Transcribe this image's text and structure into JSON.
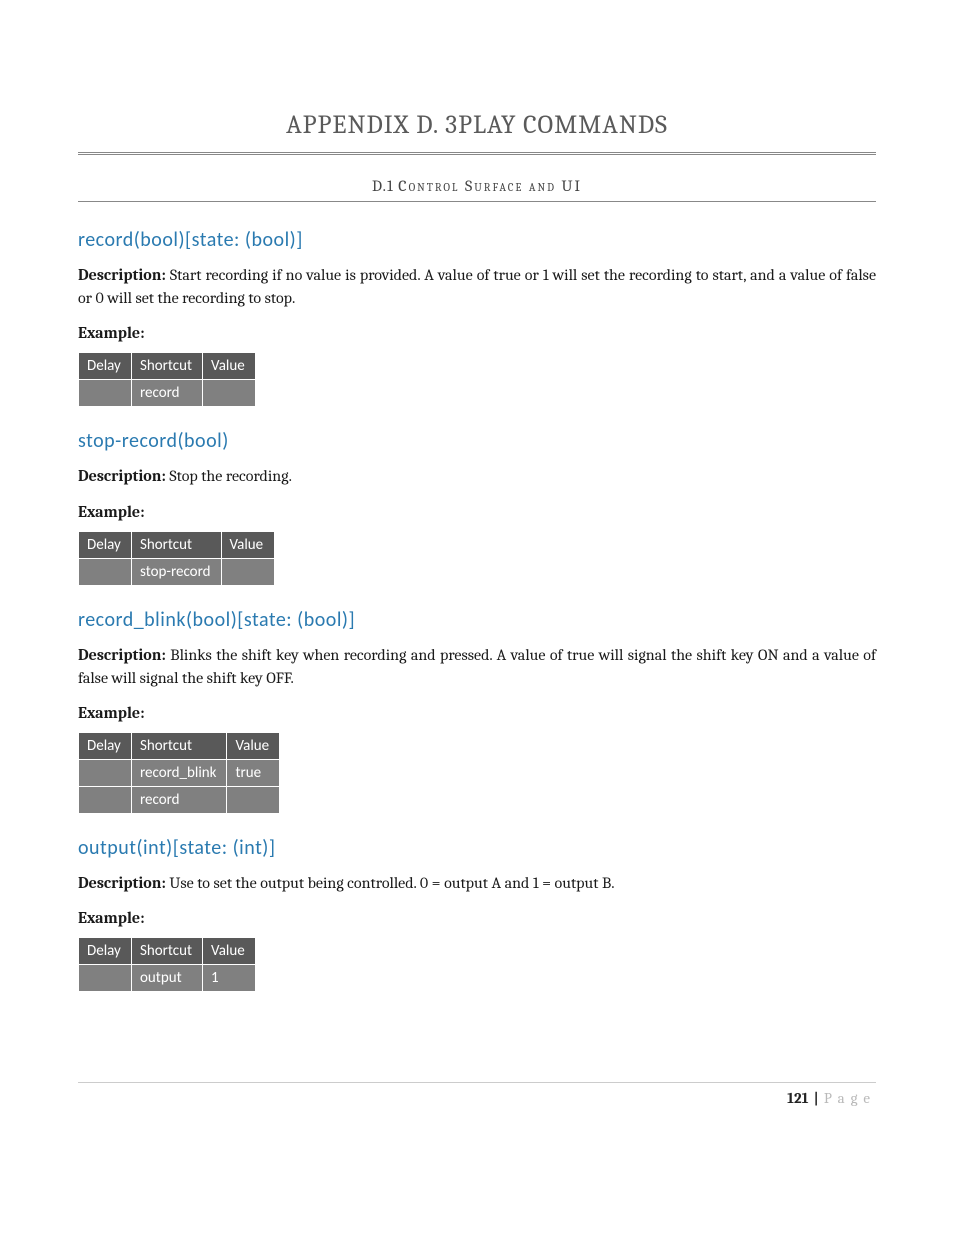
{
  "title": "APPENDIX D.    3PLAY COMMANDS",
  "subtitle_prefix": "D.1 ",
  "subtitle_text": "Control Surface and UI",
  "labels": {
    "description": "Description:",
    "example": "Example:"
  },
  "table_headers": {
    "delay": "Delay",
    "shortcut": "Shortcut",
    "value": "Value"
  },
  "sections": [
    {
      "heading": "record(bool)[state: (bool)]",
      "description": "Start recording if no value is provided. A value of true or 1 will set the recording to start, and a value of false or 0 will set the recording to stop.",
      "rows": [
        {
          "delay": "",
          "shortcut": "record",
          "value": ""
        }
      ]
    },
    {
      "heading": "stop-record(bool)",
      "description": "Stop the recording.",
      "rows": [
        {
          "delay": "",
          "shortcut": "stop-record",
          "value": ""
        }
      ]
    },
    {
      "heading": "record_blink(bool)[state: (bool)]",
      "description": "Blinks the shift key when recording and pressed. A value of true will signal the shift key ON and a value of false will signal the shift key OFF.",
      "rows": [
        {
          "delay": "",
          "shortcut": "record_blink",
          "value": "true"
        },
        {
          "delay": "",
          "shortcut": "record",
          "value": ""
        }
      ]
    },
    {
      "heading": "output(int)[state: (int)]",
      "description": "Use to set the output being controlled. 0 = output A and 1 = output B.",
      "rows": [
        {
          "delay": "",
          "shortcut": "output",
          "value": "1"
        }
      ]
    }
  ],
  "footer": {
    "page_number": "121",
    "separator": " | ",
    "page_word": "Page"
  },
  "colors": {
    "heading_blue": "#2a7ab0",
    "table_header_bg": "#595959",
    "table_cell_bg": "#808080",
    "title_gray": "#5a5a5a",
    "footer_gray": "#b9b9b9"
  }
}
